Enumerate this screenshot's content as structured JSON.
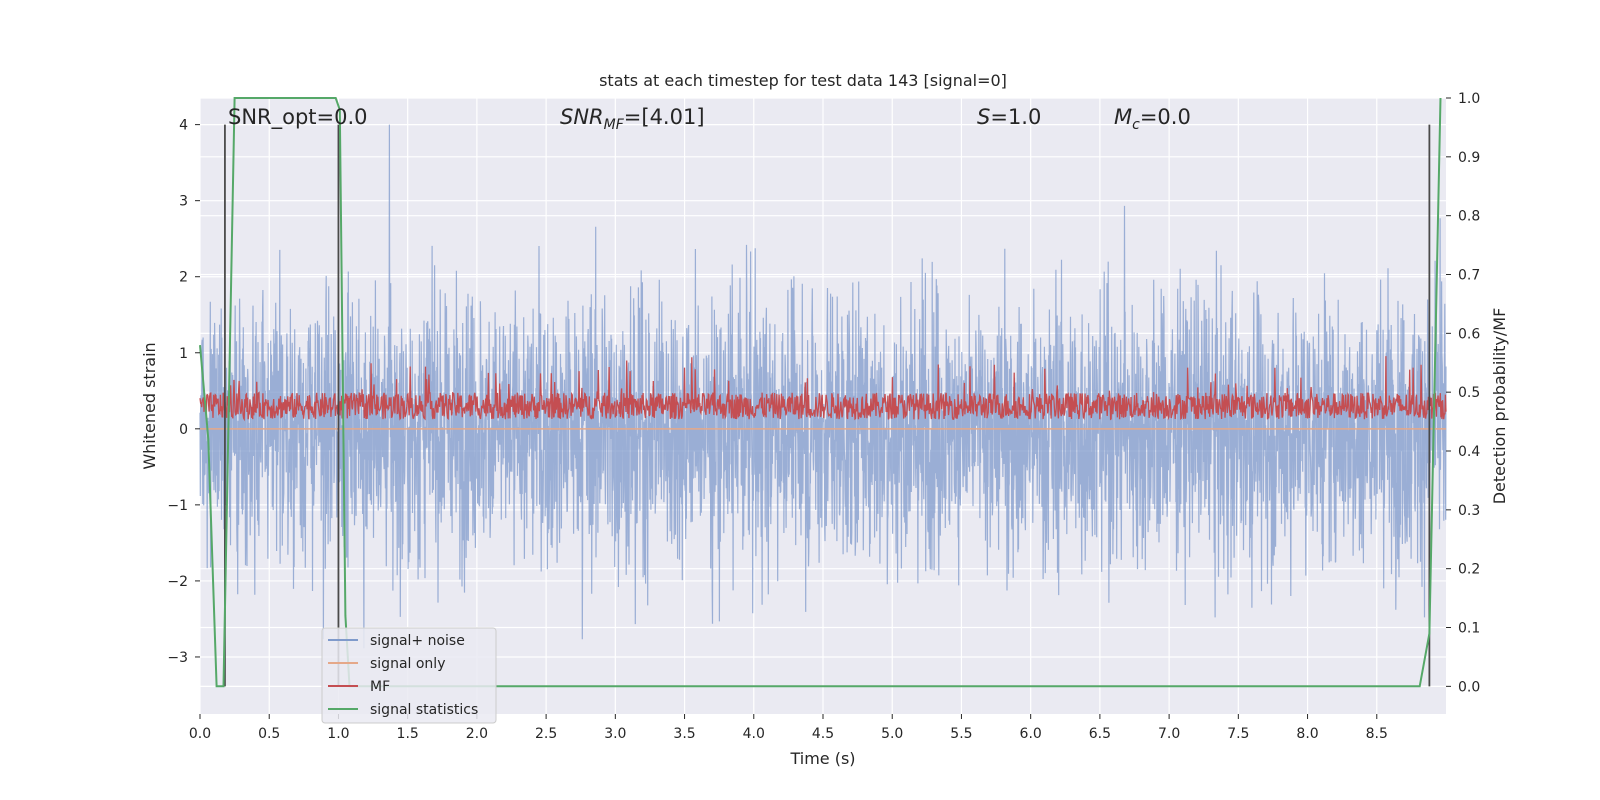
{
  "chart_data": {
    "type": "line",
    "title": "stats at each timestep for test data 143 [signal=0]",
    "xlabel": "Time (s)",
    "ylabel": "Whitened strain",
    "ylabel_right": "Detection probability/MF",
    "xlim": [
      0.0,
      9.0
    ],
    "ylim": [
      -3.75,
      4.35
    ],
    "ylim_right": [
      -0.047,
      1.0
    ],
    "xticks": [
      "0.0",
      "0.5",
      "1.0",
      "1.5",
      "2.0",
      "2.5",
      "3.0",
      "3.5",
      "4.0",
      "4.5",
      "5.0",
      "5.5",
      "6.0",
      "6.5",
      "7.0",
      "7.5",
      "8.0",
      "8.5"
    ],
    "yticks": [
      "4",
      "3",
      "2",
      "1",
      "0",
      "−1",
      "−2",
      "−3"
    ],
    "yticks_right": [
      "1.0",
      "0.9",
      "0.8",
      "0.7",
      "0.6",
      "0.5",
      "0.4",
      "0.3",
      "0.2",
      "0.1",
      "0.0"
    ],
    "grid": true,
    "legend_position": "lower-left",
    "annotations": [
      {
        "id": "snr-opt",
        "text": "SNR_opt=0.0"
      },
      {
        "id": "snr-mf",
        "prefix": "SNR",
        "sub": "MF",
        "suffix": "=[4.01]"
      },
      {
        "id": "s-stat",
        "prefix": "S",
        "sub": "",
        "suffix": "=1.0"
      },
      {
        "id": "mc-stat",
        "prefix": "M",
        "sub": "c",
        "suffix": "=0.0"
      }
    ],
    "vlines_x": [
      0.18,
      1.0,
      8.88
    ],
    "series": [
      {
        "name": "signal+ noise",
        "color": "#7f9acb",
        "axis": "left",
        "description": "whitened noise, range approx -3.6 to 4.0"
      },
      {
        "name": "signal only",
        "color": "#e5a889",
        "axis": "left",
        "values_constant": 0.0
      },
      {
        "name": "MF",
        "color": "#c44e52",
        "axis": "left",
        "range": [
          0.0,
          1.0
        ]
      },
      {
        "name": "signal statistics",
        "color": "#55a868",
        "axis": "right",
        "x": [
          0.0,
          0.06,
          0.12,
          0.17,
          0.25,
          0.98,
          1.01,
          1.05,
          1.08,
          8.81,
          8.88,
          8.96
        ],
        "values": [
          0.58,
          0.42,
          0.0,
          0.0,
          1.0,
          1.0,
          0.98,
          0.12,
          0.0,
          0.0,
          0.09,
          1.0
        ]
      }
    ]
  },
  "colors": {
    "plot_background": "#eaeaf2",
    "grid": "#ffffff",
    "vline": "#4a4a4a"
  }
}
